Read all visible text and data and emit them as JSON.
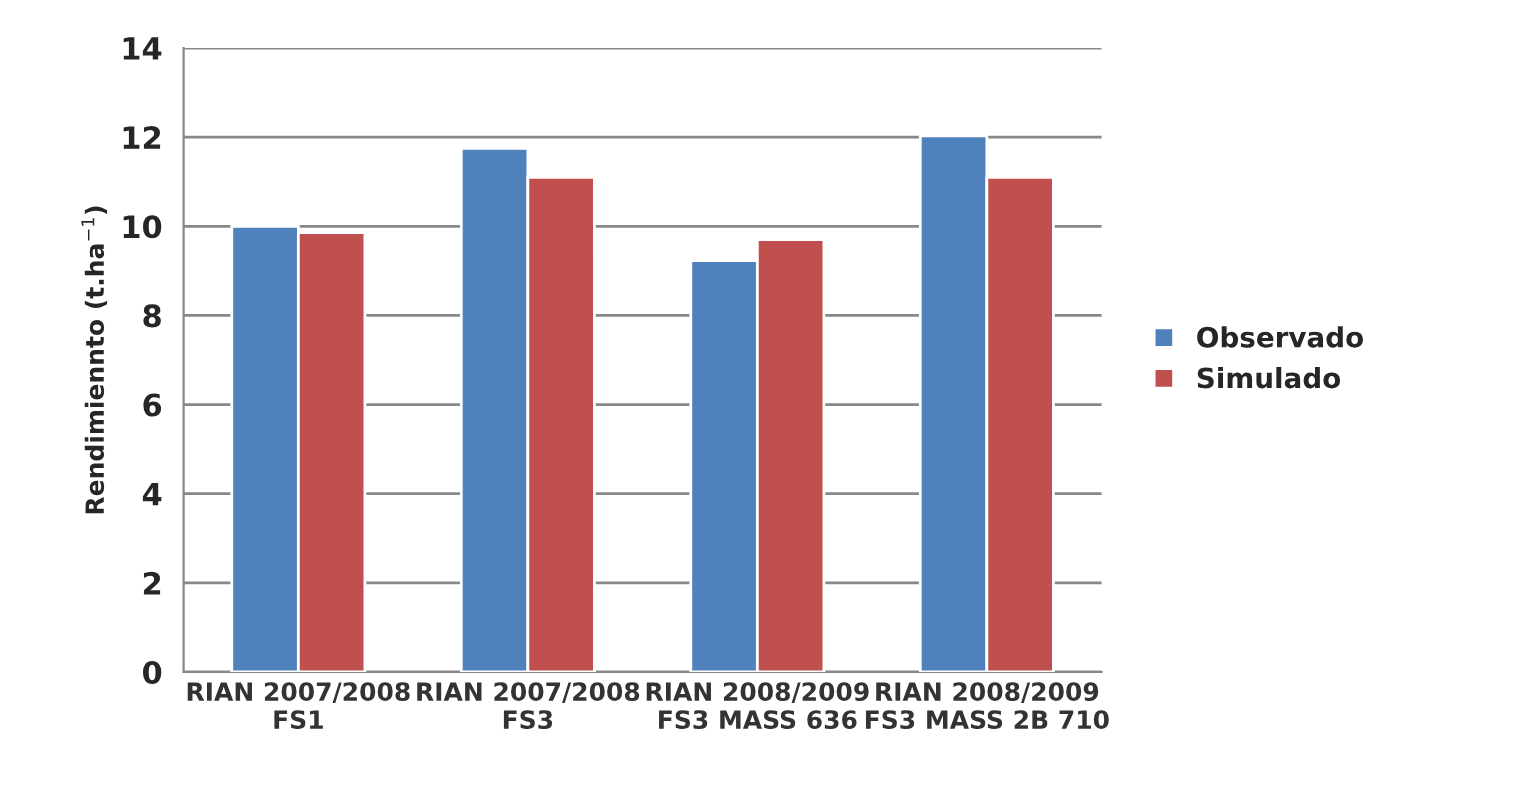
{
  "chart_data": {
    "type": "bar",
    "ylabel": "Rendimiennto (t.ha$^{−1}$)",
    "categories": [
      "RIAN 2007/2008\nFS1",
      "RIAN 2007/2008\nFS3",
      "RIAN 2008/2009\nFS3 MASS 636",
      "RIAN 2008/2009\nFS3 MASS 2B 710"
    ],
    "series": [
      {
        "name": "Observado",
        "color": "#4f81bd",
        "values": [
          10.0,
          11.75,
          9.23,
          12.03
        ]
      },
      {
        "name": "Simulado",
        "color": "#c0504d",
        "values": [
          9.86,
          11.1,
          9.7,
          11.1
        ]
      }
    ],
    "ylim": [
      0,
      14
    ],
    "yticks": [
      0,
      2,
      4,
      6,
      8,
      10,
      12,
      14
    ],
    "grid": "y",
    "legend": "right"
  }
}
